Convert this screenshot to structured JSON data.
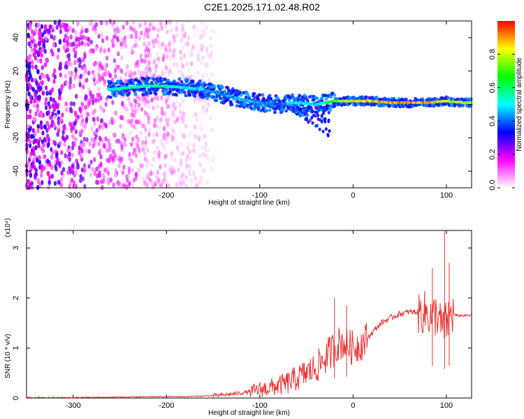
{
  "title": "C2E1.2025.171.02.48.R02",
  "chart_data": [
    {
      "type": "heatmap",
      "title": "C2E1.2025.171.02.48.R02",
      "xlabel": "Height of straight line (km)",
      "ylabel": "Frequency (Hz)",
      "xlim": [
        -350,
        127
      ],
      "ylim": [
        -50,
        50
      ],
      "x_ticks": [
        -300,
        -200,
        -100,
        0,
        100
      ],
      "y_ticks": [
        -40,
        -20,
        0,
        20,
        40
      ],
      "colorbar": {
        "label": "Normalized spectral amplitude",
        "range": [
          0,
          1
        ],
        "ticks": [
          0.0,
          0.2,
          0.4,
          0.6,
          0.8
        ],
        "tick_labels": [
          "0.0",
          "0.2",
          "0.4",
          "0.6",
          "0.8"
        ],
        "colormap": [
          "#ffffff",
          "#ff00ff",
          "#0000ff",
          "#00ffff",
          "#00ff00",
          "#ffff00",
          "#ff0000"
        ]
      },
      "ridge": {
        "x": [
          -260,
          -240,
          -220,
          -200,
          -180,
          -160,
          -140,
          -120,
          -100,
          -80,
          -60,
          -40,
          -20,
          0,
          20,
          40,
          60,
          80,
          100,
          120
        ],
        "frequency": [
          9,
          10,
          11,
          11,
          10,
          9,
          6,
          3,
          1,
          0,
          1,
          0,
          2,
          2,
          2,
          1,
          1,
          1,
          2,
          1
        ],
        "amplitude": [
          0.55,
          0.6,
          0.6,
          0.6,
          0.55,
          0.5,
          0.45,
          0.5,
          0.5,
          0.4,
          0.55,
          0.5,
          0.75,
          0.9,
          0.95,
          0.95,
          1.0,
          0.95,
          0.9,
          0.85
        ]
      },
      "noise_region": {
        "x_range": [
          -350,
          -150
        ],
        "amplitude": 0.25
      }
    },
    {
      "type": "line",
      "xlabel": "Height of straight line (km)",
      "ylabel": "SNR (10 * v/v)",
      "y_multiplier": "(x10⁴)",
      "xlim": [
        -350,
        127
      ],
      "ylim": [
        0,
        3.35
      ],
      "x_ticks": [
        -300,
        -200,
        -100,
        0,
        100
      ],
      "y_ticks": [
        0,
        1,
        2,
        3
      ],
      "series": [
        {
          "color": "#ee3333",
          "x": [
            -350,
            -300,
            -250,
            -200,
            -180,
            -160,
            -140,
            -120,
            -110,
            -100,
            -90,
            -80,
            -70,
            -60,
            -50,
            -40,
            -30,
            -20,
            -15,
            -10,
            0,
            10,
            20,
            30,
            40,
            50,
            60,
            70,
            80,
            85,
            90,
            95,
            100,
            105,
            110,
            120,
            127
          ],
          "values": [
            0.01,
            0.01,
            0.02,
            0.03,
            0.03,
            0.04,
            0.06,
            0.1,
            0.13,
            0.17,
            0.2,
            0.25,
            0.3,
            0.4,
            0.5,
            0.6,
            0.8,
            1.0,
            1.1,
            1.1,
            1.0,
            1.1,
            1.3,
            1.5,
            1.6,
            1.68,
            1.72,
            1.72,
            1.7,
            1.6,
            1.7,
            1.4,
            1.5,
            1.7,
            1.65,
            1.65,
            1.65
          ],
          "spikes": [
            {
              "x": -20,
              "value": 2.0
            },
            {
              "x": -7,
              "value": 1.85
            },
            {
              "x": 85,
              "value": 2.6
            },
            {
              "x": 98,
              "value": 3.35
            },
            {
              "x": 103,
              "value": 2.7
            }
          ]
        }
      ]
    }
  ]
}
